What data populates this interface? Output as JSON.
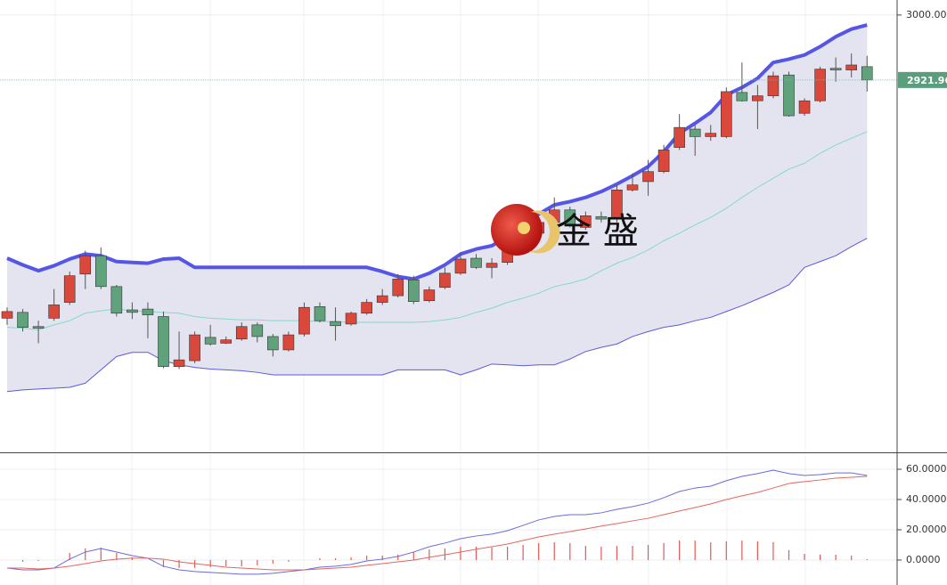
{
  "chart_data": [
    {
      "type": "candlestick",
      "watermark": "金 盛",
      "up_color": "#d9483b",
      "down_color": "#5fa27c",
      "band_fill": "#e4e4f1",
      "open": [
        2636,
        2643,
        2626,
        2636,
        2655,
        2689,
        2711,
        2674,
        2646,
        2647,
        2638,
        2578,
        2585,
        2613,
        2606,
        2611,
        2628,
        2614,
        2598,
        2617,
        2650,
        2632,
        2629,
        2642,
        2655,
        2663,
        2682,
        2657,
        2673,
        2690,
        2708,
        2697,
        2703,
        2719,
        2738,
        2751,
        2766,
        2745,
        2758,
        2756,
        2790,
        2800,
        2812,
        2841,
        2863,
        2854,
        2854,
        2907,
        2897,
        2903,
        2928,
        2882,
        2897,
        2936,
        2934,
        2938
      ],
      "high": [
        2649,
        2647,
        2633,
        2671,
        2692,
        2717,
        2721,
        2676,
        2655,
        2655,
        2644,
        2620,
        2620,
        2628,
        2614,
        2631,
        2631,
        2617,
        2620,
        2655,
        2655,
        2649,
        2644,
        2659,
        2671,
        2689,
        2687,
        2674,
        2697,
        2715,
        2713,
        2708,
        2721,
        2742,
        2756,
        2781,
        2770,
        2764,
        2764,
        2796,
        2810,
        2826,
        2844,
        2881,
        2868,
        2868,
        2913,
        2943,
        2916,
        2932,
        2932,
        2900,
        2938,
        2949,
        2954,
        2951
      ],
      "low": [
        2628,
        2620,
        2606,
        2633,
        2652,
        2671,
        2671,
        2638,
        2635,
        2612,
        2576,
        2575,
        2582,
        2603,
        2605,
        2609,
        2607,
        2590,
        2596,
        2614,
        2631,
        2609,
        2627,
        2640,
        2652,
        2661,
        2653,
        2655,
        2671,
        2688,
        2695,
        2684,
        2700,
        2717,
        2736,
        2749,
        2745,
        2742,
        2751,
        2751,
        2788,
        2783,
        2810,
        2838,
        2831,
        2849,
        2852,
        2896,
        2863,
        2900,
        2878,
        2879,
        2895,
        2920,
        2925,
        2908
      ],
      "close": [
        2644,
        2625,
        2624,
        2652,
        2687,
        2711,
        2674,
        2642,
        2643,
        2640,
        2578,
        2586,
        2616,
        2605,
        2610,
        2626,
        2614,
        2598,
        2616,
        2649,
        2633,
        2627,
        2642,
        2655,
        2663,
        2683,
        2656,
        2670,
        2690,
        2707,
        2697,
        2702,
        2717,
        2738,
        2751,
        2766,
        2749,
        2759,
        2755,
        2790,
        2796,
        2812,
        2838,
        2865,
        2854,
        2858,
        2908,
        2897,
        2903,
        2927,
        2879,
        2897,
        2935,
        2934,
        2940,
        2921.96
      ],
      "series": [
        {
          "color": "#5656e6",
          "width": 4,
          "values": [
            2708,
            2700,
            2693,
            2699,
            2707,
            2713,
            2711,
            2704,
            2703,
            2702,
            2707,
            2708,
            2697,
            2697,
            2697,
            2697,
            2697,
            2697,
            2697,
            2697,
            2697,
            2697,
            2697,
            2697,
            2692,
            2686,
            2683,
            2690,
            2700,
            2713,
            2719,
            2723,
            2734,
            2745,
            2761,
            2772,
            2776,
            2781,
            2788,
            2797,
            2807,
            2818,
            2836,
            2858,
            2870,
            2883,
            2904,
            2913,
            2924,
            2943,
            2947,
            2952,
            2962,
            2974,
            2983,
            2988
          ]
        },
        {
          "color": "#86d8c4",
          "width": 1,
          "values": [
            2625,
            2624,
            2622,
            2628,
            2633,
            2642,
            2645,
            2647,
            2645,
            2644,
            2643,
            2642,
            2638,
            2636,
            2635,
            2634,
            2634,
            2633,
            2633,
            2633,
            2632,
            2632,
            2631,
            2631,
            2631,
            2631,
            2631,
            2632,
            2634,
            2637,
            2643,
            2648,
            2655,
            2660,
            2666,
            2674,
            2678,
            2683,
            2693,
            2702,
            2709,
            2718,
            2729,
            2738,
            2748,
            2757,
            2768,
            2781,
            2793,
            2804,
            2815,
            2822,
            2834,
            2844,
            2852,
            2860
          ]
        },
        {
          "color": "#5a5ae0",
          "width": 1,
          "values": [
            2548,
            2550,
            2551,
            2552,
            2553,
            2558,
            2574,
            2590,
            2595,
            2595,
            2585,
            2580,
            2577,
            2575,
            2574,
            2573,
            2571,
            2568,
            2568,
            2568,
            2568,
            2568,
            2568,
            2568,
            2568,
            2574,
            2574,
            2574,
            2574,
            2568,
            2574,
            2581,
            2580,
            2579,
            2580,
            2580,
            2587,
            2596,
            2601,
            2605,
            2614,
            2620,
            2625,
            2628,
            2633,
            2637,
            2644,
            2651,
            2659,
            2667,
            2676,
            2697,
            2704,
            2711,
            2722,
            2732
          ]
        }
      ],
      "ylim": [
        2475,
        3018
      ],
      "yticks": [
        {
          "value": 3000,
          "label": "3000.00"
        }
      ],
      "grid": true
    },
    {
      "type": "macd",
      "series": [
        {
          "color": "#6a6ade",
          "values": [
            -5.3,
            -6.5,
            -6.5,
            -5.3,
            0.6,
            5.3,
            7.6,
            5.3,
            2.9,
            1.2,
            -4.1,
            -6.5,
            -7.6,
            -8.2,
            -8.8,
            -9.4,
            -9.4,
            -8.8,
            -7.6,
            -6.5,
            -4.7,
            -4.1,
            -2.9,
            -0.6,
            0.6,
            2.4,
            5.3,
            8.8,
            11.2,
            14.1,
            15.9,
            17.1,
            19.4,
            22.9,
            26.5,
            28.8,
            30,
            30,
            31.2,
            33.5,
            35.3,
            37.6,
            41.2,
            45.3,
            47.6,
            48.8,
            52.4,
            55.3,
            57.1,
            59.4,
            57.1,
            55.9,
            56.5,
            57.6,
            57.6,
            55.9
          ]
        },
        {
          "color": "#e2675f",
          "values": [
            -5.3,
            -5.3,
            -5.9,
            -5.3,
            -4.1,
            -2.4,
            -0.6,
            0.6,
            1.2,
            1.2,
            0.6,
            -1.2,
            -2.4,
            -3.5,
            -4.7,
            -5.3,
            -5.9,
            -6.5,
            -6.5,
            -6.5,
            -5.9,
            -5.3,
            -4.7,
            -3.5,
            -2.4,
            -1.2,
            0,
            1.8,
            3.5,
            5.3,
            7.1,
            8.8,
            10.6,
            12.9,
            15.3,
            17.1,
            18.8,
            20.6,
            22.4,
            24.1,
            25.9,
            27.6,
            30,
            32.4,
            34.7,
            37.1,
            40,
            42.4,
            44.7,
            47.6,
            50.6,
            51.8,
            52.9,
            54.1,
            54.7,
            55.3
          ]
        }
      ],
      "histogram": {
        "color": "#e25a55",
        "values": [
          0,
          -1.2,
          -0.6,
          0,
          4.7,
          7.7,
          8.2,
          4.7,
          1.7,
          0,
          -4.7,
          -5.3,
          -5.2,
          -4.7,
          -4.1,
          -4.1,
          -3.5,
          -2.3,
          -1.1,
          0,
          1.2,
          1.2,
          1.8,
          2.9,
          3,
          3.6,
          5.3,
          7,
          7.7,
          8.8,
          8.8,
          8.3,
          8.8,
          10,
          11.2,
          11.7,
          11.2,
          9.4,
          8.8,
          9.4,
          9.4,
          10,
          11.2,
          12.9,
          12.9,
          11.7,
          12.4,
          12.9,
          12.4,
          11.8,
          6.5,
          4.1,
          3.6,
          3.5,
          2.9,
          0.6
        ]
      },
      "ylim": [
        -16.5,
        70
      ],
      "yticks": [
        {
          "value": 60,
          "label": "60.0000"
        },
        {
          "value": 40,
          "label": "40.0000"
        },
        {
          "value": 20,
          "label": "20.0000"
        },
        {
          "value": 0,
          "label": "0.0000"
        }
      ],
      "grid": true
    }
  ]
}
